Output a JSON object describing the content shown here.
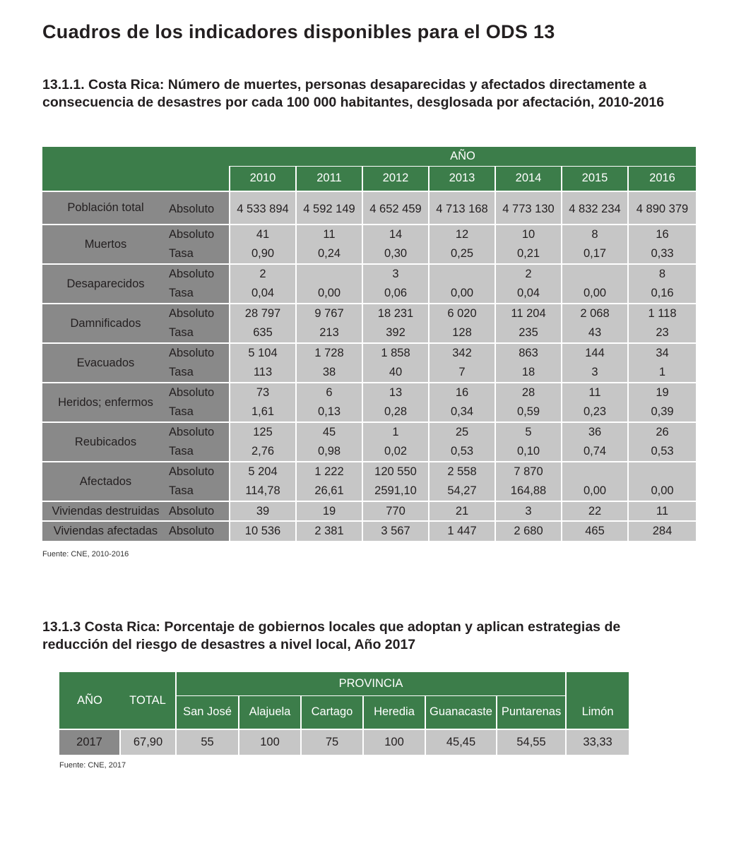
{
  "page_title": "Cuadros de los indicadores disponibles para el ODS 13",
  "table1": {
    "title_line1": "13.1.1. Costa Rica: Número de muertes, personas desaparecidas y afectados directamente a",
    "title_line2": "consecuencia de desastres por cada 100 000 habitantes, desglosada por afectación, 2010-2016",
    "header_group": "AÑO",
    "years": [
      "2010",
      "2011",
      "2012",
      "2013",
      "2014",
      "2015",
      "2016"
    ],
    "rows": [
      {
        "category": "Población total",
        "measure": "Absoluto",
        "values": [
          "4 533 894",
          "4 592 149",
          "4 652 459",
          "4 713 168",
          "4 773 130",
          "4 832 234",
          "4 890 379"
        ]
      },
      {
        "category": "Muertos",
        "measure": "Absoluto",
        "values": [
          "41",
          "11",
          "14",
          "12",
          "10",
          "8",
          "16"
        ]
      },
      {
        "measure": "Tasa",
        "values": [
          "0,90",
          "0,24",
          "0,30",
          "0,25",
          "0,21",
          "0,17",
          "0,33"
        ]
      },
      {
        "category": "Desaparecidos",
        "measure": "Absoluto",
        "values": [
          "2",
          "",
          "3",
          "",
          "2",
          "",
          "8"
        ]
      },
      {
        "measure": "Tasa",
        "values": [
          "0,04",
          "0,00",
          "0,06",
          "0,00",
          "0,04",
          "0,00",
          "0,16"
        ]
      },
      {
        "category": "Damnificados",
        "measure": "Absoluto",
        "values": [
          "28 797",
          "9 767",
          "18 231",
          "6 020",
          "11 204",
          "2 068",
          "1 118"
        ]
      },
      {
        "measure": "Tasa",
        "values": [
          "635",
          "213",
          "392",
          "128",
          "235",
          "43",
          "23"
        ]
      },
      {
        "category": "Evacuados",
        "measure": "Absoluto",
        "values": [
          "5 104",
          "1 728",
          "1 858",
          "342",
          "863",
          "144",
          "34"
        ]
      },
      {
        "measure": "Tasa",
        "values": [
          "113",
          "38",
          "40",
          "7",
          "18",
          "3",
          "1"
        ]
      },
      {
        "category": "Heridos; enfermos",
        "measure": "Absoluto",
        "values": [
          "73",
          "6",
          "13",
          "16",
          "28",
          "11",
          "19"
        ]
      },
      {
        "measure": "Tasa",
        "values": [
          "1,61",
          "0,13",
          "0,28",
          "0,34",
          "0,59",
          "0,23",
          "0,39"
        ]
      },
      {
        "category": "Reubicados",
        "measure": "Absoluto",
        "values": [
          "125",
          "45",
          "1",
          "25",
          "5",
          "36",
          "26"
        ]
      },
      {
        "measure": "Tasa",
        "values": [
          "2,76",
          "0,98",
          "0,02",
          "0,53",
          "0,10",
          "0,74",
          "0,53"
        ]
      },
      {
        "category": "Afectados",
        "measure": "Absoluto",
        "values": [
          "5 204",
          "1 222",
          "120 550",
          "2 558",
          "7 870",
          "",
          ""
        ]
      },
      {
        "measure": "Tasa",
        "values": [
          "114,78",
          "26,61",
          "2591,10",
          "54,27",
          "164,88",
          "0,00",
          "0,00"
        ]
      },
      {
        "category": "Viviendas destruidas",
        "measure": "Absoluto",
        "values": [
          "39",
          "19",
          "770",
          "21",
          "3",
          "22",
          "11"
        ]
      },
      {
        "category": "Viviendas afectadas",
        "measure": "Absoluto",
        "values": [
          "10 536",
          "2 381",
          "3 567",
          "1 447",
          "2 680",
          "465",
          "284"
        ]
      }
    ],
    "source": "Fuente: CNE, 2010-2016"
  },
  "table2": {
    "title_line1": "13.1.3 Costa Rica: Porcentaje de gobiernos locales que adoptan y aplican estrategias de",
    "title_line2": "reducción del riesgo de desastres a nivel local, Año 2017",
    "col_year": "AÑO",
    "col_total": "TOTAL",
    "group_label": "PROVINCIA",
    "provinces": [
      "San José",
      "Alajuela",
      "Cartago",
      "Heredia",
      "Guanacaste",
      "Puntarenas",
      "Limón"
    ],
    "row": {
      "year": "2017",
      "total": "67,90",
      "values": [
        "55",
        "100",
        "75",
        "100",
        "45,45",
        "54,55",
        "33,33"
      ]
    },
    "source": "Fuente: CNE, 2017"
  },
  "colors": {
    "header_green": "#3c7d4a",
    "label_gray": "#898989",
    "value_gray": "#c6c6c6"
  }
}
